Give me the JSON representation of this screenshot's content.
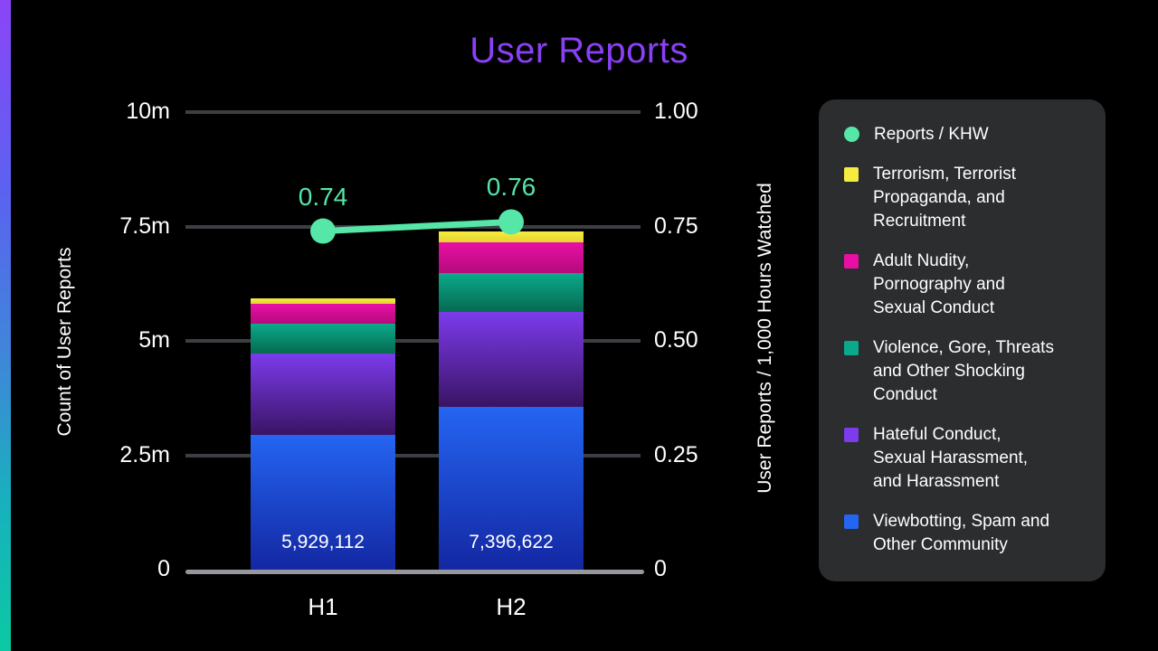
{
  "title": "User Reports",
  "colors": {
    "background": "#000000",
    "title_purple": "#8a40f5",
    "mint_accent": "#55e6a8",
    "gridline": "#3c3e44",
    "axis_line": "#96979c",
    "legend_panel_bg": "#2b2d2e",
    "edge_strip_top": "#8b45f7",
    "edge_strip_bottom": "#0bc9a2"
  },
  "chart_data": {
    "type": "bar",
    "title": "User Reports",
    "categories": [
      "H1",
      "H2"
    ],
    "bar_total_labels": [
      "5,929,112",
      "7,396,622"
    ],
    "stack_series_bottom_to_top": [
      {
        "name": "Viewbotting, Spam and Other Community",
        "color": "#2465f2",
        "color_dark": "#1327a2",
        "values_millions": [
          2.95,
          3.55
        ]
      },
      {
        "name": "Hateful Conduct, Sexual Harassment, and Harassment",
        "color": "#7c3bec",
        "color_dark": "#3a1464",
        "values_millions": [
          1.77,
          2.09
        ]
      },
      {
        "name": "Violence, Gore, Threats and Other Shocking Conduct",
        "color": "#0ba98b",
        "color_dark": "#066a50",
        "values_millions": [
          0.65,
          0.85
        ]
      },
      {
        "name": "Adult Nudity, Pornography and Sexual Conduct",
        "color": "#e90fa5",
        "color_dark": "#b40b7c",
        "values_millions": [
          0.439112,
          0.666622
        ]
      },
      {
        "name": "Terrorism, Terrorist Propaganda, and Recruitment",
        "color": "#f6ec41",
        "color_dark": "#e6d32f",
        "values_millions": [
          0.12,
          0.24
        ]
      }
    ],
    "bar_totals": [
      5929112,
      7396622
    ],
    "line_series": {
      "name": "Reports / KHW",
      "values": [
        0.74,
        0.76
      ],
      "point_labels": [
        "0.74",
        "0.76"
      ],
      "color": "#55e6a8"
    },
    "left_axis": {
      "title": "Count of User Reports",
      "max_millions": 10,
      "ticks": [
        {
          "label": "0",
          "value": 0
        },
        {
          "label": "2.5m",
          "value": 2.5
        },
        {
          "label": "5m",
          "value": 5
        },
        {
          "label": "7.5m",
          "value": 7.5
        },
        {
          "label": "10m",
          "value": 10
        }
      ]
    },
    "right_axis": {
      "title": "User Reports / 1,000 Hours Watched",
      "max": 1.0,
      "ticks": [
        {
          "label": "0",
          "value": 0
        },
        {
          "label": "0.25",
          "value": 0.25
        },
        {
          "label": "0.50",
          "value": 0.5
        },
        {
          "label": "0.75",
          "value": 0.75
        },
        {
          "label": "1.00",
          "value": 1.0
        }
      ]
    },
    "grid": true,
    "legend_position": "right"
  },
  "legend": {
    "items": [
      {
        "label": "Reports / KHW",
        "shape": "circle",
        "color": "#55e6a8"
      },
      {
        "label": "Terrorism, Terrorist\nPropaganda, and\nRecruitment",
        "shape": "square",
        "color": "#f6ec41"
      },
      {
        "label": "Adult Nudity,\nPornography and\nSexual Conduct",
        "shape": "square",
        "color": "#e90fa5"
      },
      {
        "label": "Violence, Gore, Threats\nand Other Shocking\nConduct",
        "shape": "square",
        "color": "#0ba98b"
      },
      {
        "label": "Hateful Conduct,\nSexual Harassment,\nand Harassment",
        "shape": "square",
        "color": "#7c3bec"
      },
      {
        "label": "Viewbotting, Spam and\nOther Community",
        "shape": "square",
        "color": "#2465f2"
      }
    ]
  }
}
